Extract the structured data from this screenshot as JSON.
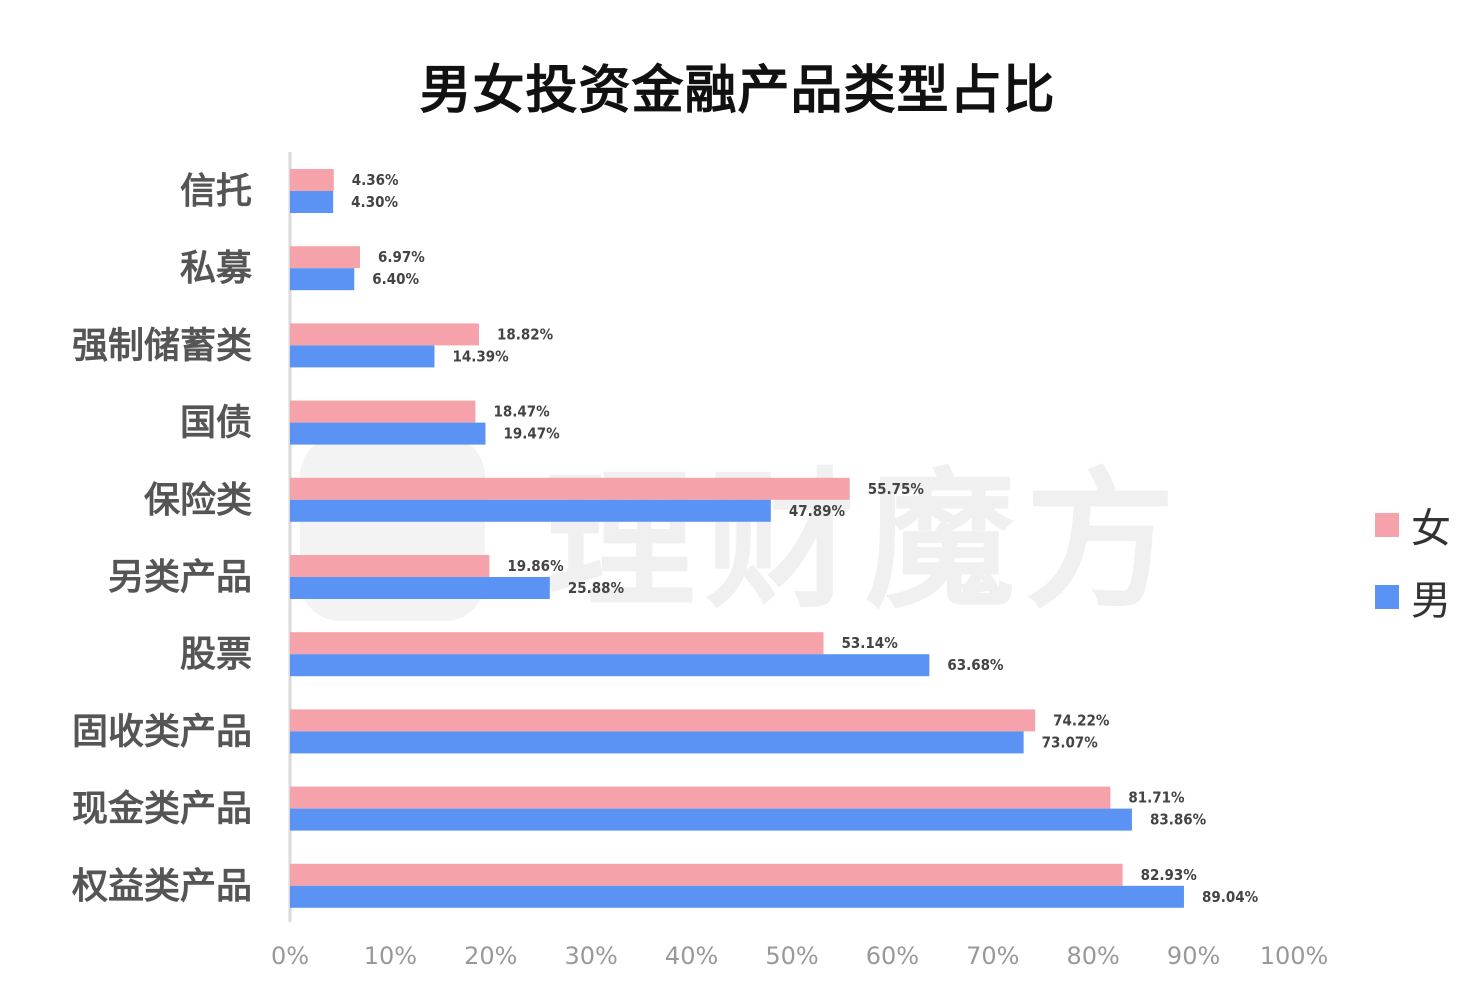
{
  "chart_data": {
    "type": "bar",
    "orientation": "horizontal",
    "title": "男女投资金融产品类型占比",
    "categories": [
      "信托",
      "私募",
      "强制储蓄类",
      "国债",
      "保险类",
      "另类产品",
      "股票",
      "固收类产品",
      "现金类产品",
      "权益类产品"
    ],
    "series": [
      {
        "name": "女",
        "color": "#F6A2AA",
        "values": [
          4.36,
          6.97,
          18.82,
          18.47,
          55.75,
          19.86,
          53.14,
          74.22,
          81.71,
          82.93
        ],
        "labels": [
          "4.36%",
          "6.97%",
          "18.82%",
          "18.47%",
          "55.75%",
          "19.86%",
          "53.14%",
          "74.22%",
          "81.71%",
          "82.93%"
        ]
      },
      {
        "name": "男",
        "color": "#5B93F5",
        "values": [
          4.3,
          6.4,
          14.39,
          19.47,
          47.89,
          25.88,
          63.68,
          73.07,
          83.86,
          89.04
        ],
        "labels": [
          "4.30%",
          "6.40%",
          "14.39%",
          "19.47%",
          "47.89%",
          "25.88%",
          "63.68%",
          "73.07%",
          "83.86%",
          "89.04%"
        ]
      }
    ],
    "xlim": [
      0,
      100
    ],
    "xticks": [
      "0%",
      "10%",
      "20%",
      "30%",
      "40%",
      "50%",
      "60%",
      "70%",
      "80%",
      "90%",
      "100%"
    ],
    "grid": false,
    "legend_position": "right"
  },
  "watermark": "理财魔方"
}
